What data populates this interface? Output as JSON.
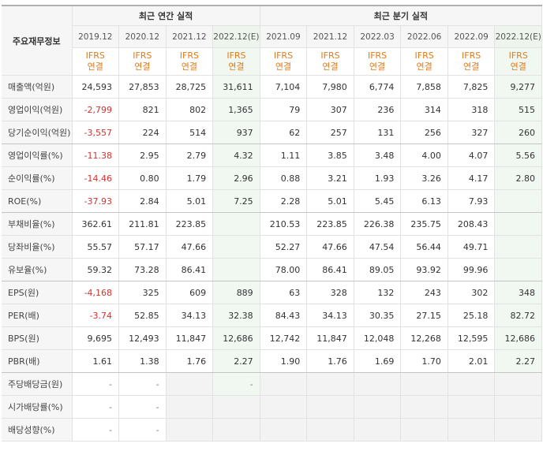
{
  "header": {
    "corner": "주요재무정보",
    "annual_title": "최근 연간 실적",
    "quarterly_title": "최근 분기 실적",
    "annual_periods": [
      "2019.12",
      "2020.12",
      "2021.12",
      "2022.12(E)"
    ],
    "quarterly_periods": [
      "2021.09",
      "2021.12",
      "2022.03",
      "2022.06",
      "2022.09",
      "2022.12(E)"
    ],
    "basis_line1": "IFRS",
    "basis_line2": "연결"
  },
  "rows": [
    {
      "label": "매출액(억원)",
      "values": [
        "24,593",
        "27,853",
        "28,725",
        "31,611",
        "7,104",
        "7,980",
        "6,774",
        "7,858",
        "7,825",
        "9,277"
      ]
    },
    {
      "label": "영업이익(억원)",
      "values": [
        "-2,799",
        "821",
        "802",
        "1,365",
        "79",
        "307",
        "236",
        "314",
        "318",
        "515"
      ]
    },
    {
      "label": "당기순이익(억원)",
      "values": [
        "-3,557",
        "224",
        "514",
        "937",
        "62",
        "257",
        "131",
        "256",
        "327",
        "260"
      ]
    },
    {
      "label": "영업이익률(%)",
      "values": [
        "-11.38",
        "2.95",
        "2.79",
        "4.32",
        "1.11",
        "3.85",
        "3.48",
        "4.00",
        "4.07",
        "5.56"
      ]
    },
    {
      "label": "순이익률(%)",
      "values": [
        "-14.46",
        "0.80",
        "1.79",
        "2.96",
        "0.88",
        "3.21",
        "1.93",
        "3.26",
        "4.17",
        "2.80"
      ]
    },
    {
      "label": "ROE(%)",
      "values": [
        "-37.93",
        "2.84",
        "5.01",
        "7.25",
        "2.28",
        "5.01",
        "5.45",
        "6.13",
        "7.93",
        ""
      ]
    },
    {
      "label": "부채비율(%)",
      "values": [
        "362.61",
        "211.81",
        "223.85",
        "",
        "210.53",
        "223.85",
        "226.38",
        "235.75",
        "208.43",
        ""
      ]
    },
    {
      "label": "당좌비율(%)",
      "values": [
        "55.57",
        "57.17",
        "47.66",
        "",
        "52.27",
        "47.66",
        "47.54",
        "56.44",
        "49.71",
        ""
      ]
    },
    {
      "label": "유보율(%)",
      "values": [
        "59.32",
        "73.28",
        "86.41",
        "",
        "78.00",
        "86.41",
        "89.05",
        "93.92",
        "99.96",
        ""
      ]
    },
    {
      "label": "EPS(원)",
      "values": [
        "-4,168",
        "325",
        "609",
        "889",
        "63",
        "328",
        "132",
        "243",
        "302",
        "348"
      ]
    },
    {
      "label": "PER(배)",
      "values": [
        "-3.74",
        "52.85",
        "34.13",
        "32.38",
        "84.43",
        "34.13",
        "30.35",
        "27.15",
        "25.18",
        "82.72"
      ]
    },
    {
      "label": "BPS(원)",
      "values": [
        "9,695",
        "12,493",
        "11,847",
        "12,686",
        "12,742",
        "11,847",
        "12,048",
        "12,268",
        "12,595",
        "12,686"
      ]
    },
    {
      "label": "PBR(배)",
      "values": [
        "1.61",
        "1.38",
        "1.76",
        "2.27",
        "1.90",
        "1.76",
        "1.69",
        "1.70",
        "2.01",
        "2.27"
      ]
    },
    {
      "label": "주당배당금(원)",
      "values": [
        "-",
        "-",
        "",
        "-",
        "",
        "",
        "",
        "",
        "",
        ""
      ]
    },
    {
      "label": "시가배당률(%)",
      "values": [
        "-",
        "-",
        "",
        "",
        "",
        "",
        "",
        "",
        "",
        ""
      ]
    },
    {
      "label": "배당성향(%)",
      "values": [
        "-",
        "-",
        "",
        "",
        "",
        "",
        "",
        "",
        "",
        ""
      ]
    }
  ],
  "colors": {
    "negative": "#d6322c",
    "basis": "#e07b1a",
    "estimate_bg": "#f1f8f1",
    "header_bg": "#f6f6f6"
  }
}
